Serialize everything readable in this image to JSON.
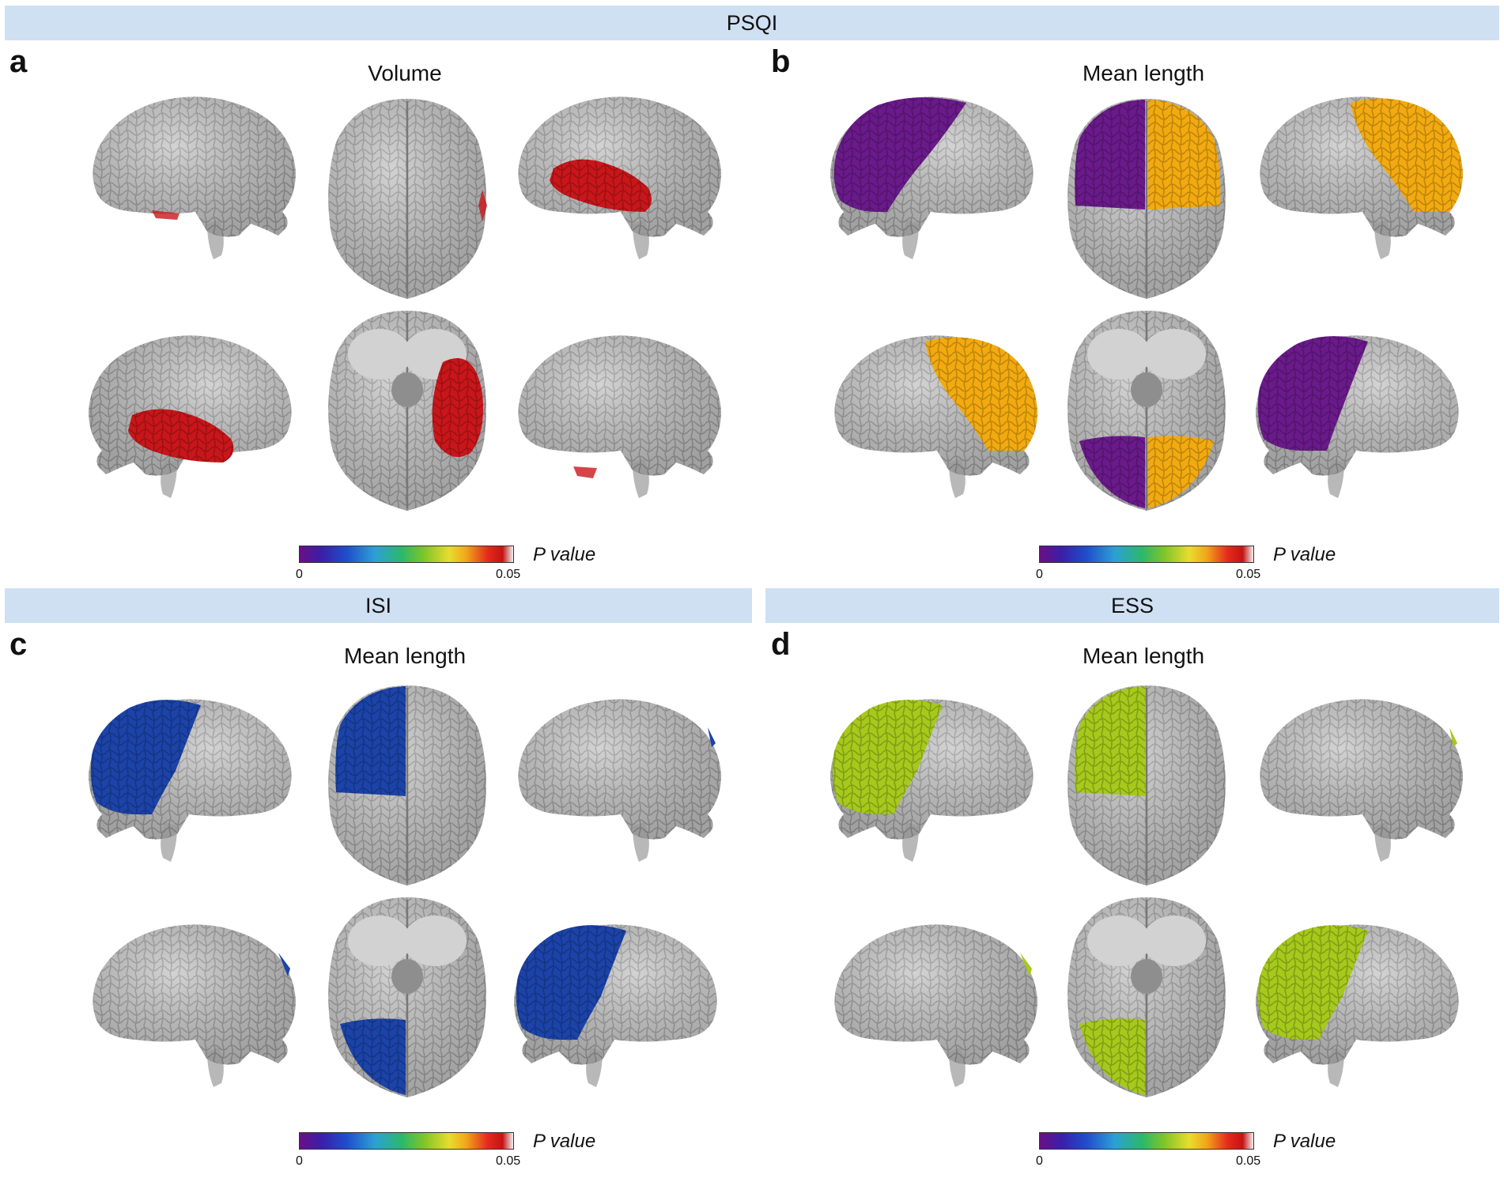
{
  "bands": {
    "psqi": "PSQI",
    "isi": "ISI",
    "ess": "ESS"
  },
  "panels": {
    "a": {
      "letter": "a",
      "title": "Volume"
    },
    "b": {
      "letter": "b",
      "title": "Mean length"
    },
    "c": {
      "letter": "c",
      "title": "Mean length"
    },
    "d": {
      "letter": "d",
      "title": "Mean length"
    }
  },
  "colorbar": {
    "label": "P value",
    "min_label": "0",
    "max_label": "0.05"
  },
  "colors": {
    "band_bg": "#cfe0f3",
    "brain_gray": "#c4c4c4",
    "volume_red": "#c8161a",
    "psqi_purple": "#6a1a8a",
    "psqi_orange": "#f2aa10",
    "isi_blue": "#1b43a8",
    "ess_green": "#a6c91c"
  },
  "views": [
    "left-lateral",
    "dorsal",
    "right-lateral",
    "right-lateral-2",
    "ventral",
    "left-lateral-2"
  ]
}
